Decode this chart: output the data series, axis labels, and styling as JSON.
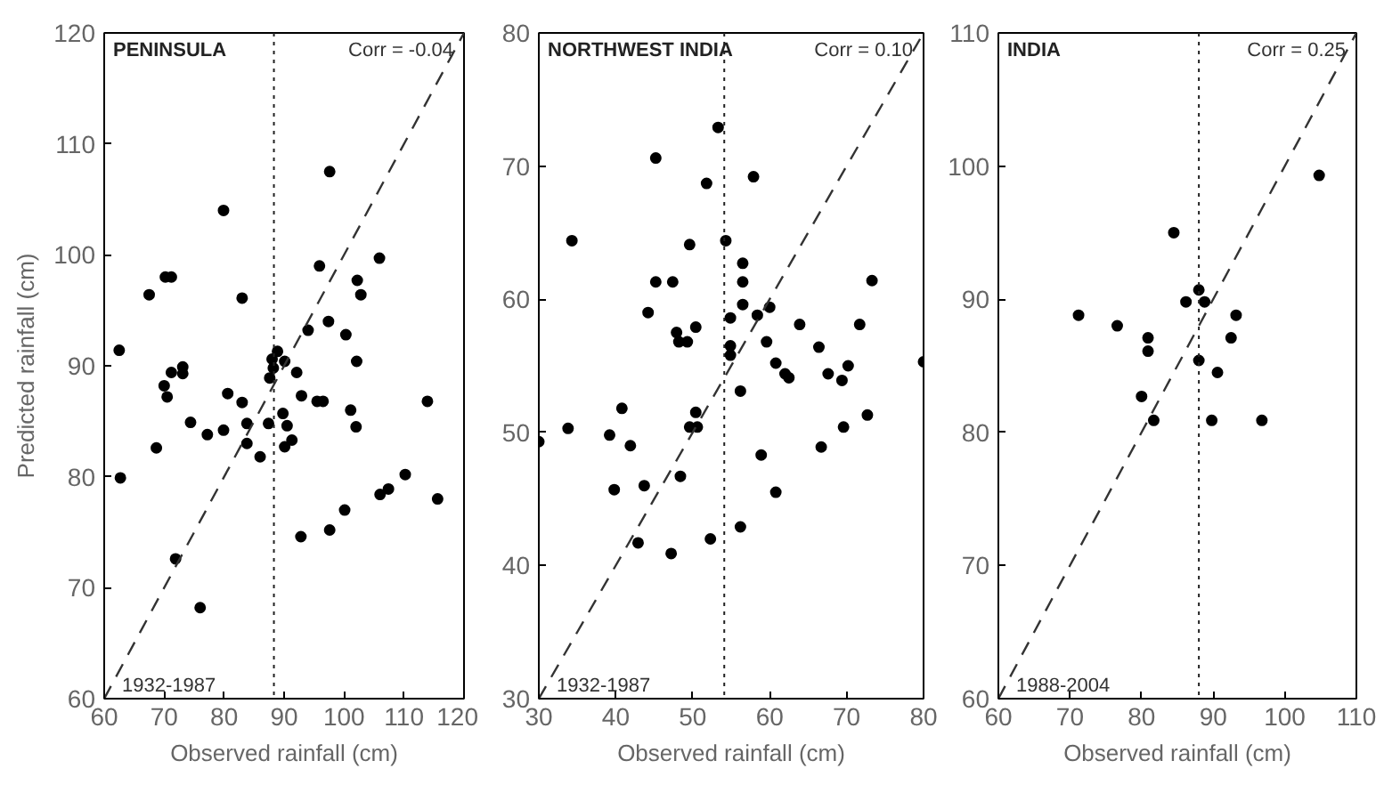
{
  "chart_data": [
    {
      "type": "scatter",
      "title": "PENINSULA",
      "xlabel": "Observed rainfall (cm)",
      "ylabel": "Predicted rainfall (cm)",
      "annotations": [
        "Corr = -0.04",
        "1932-1987"
      ],
      "xlim": [
        60,
        120
      ],
      "ylim": [
        60,
        120
      ],
      "xticks": [
        60,
        70,
        80,
        90,
        100,
        110,
        120
      ],
      "yticks": [
        60,
        70,
        80,
        90,
        100,
        110,
        120
      ],
      "marker": "circle",
      "ref_lines": [
        {
          "axis": "x",
          "value": 88.3,
          "line_style": "dotted",
          "color": "#222222"
        }
      ],
      "series": [
        {
          "color": "#000000",
          "x": [
            62.5,
            62.7,
            67.5,
            68.7,
            70.2,
            71.2,
            70,
            70.5,
            71.2,
            73.1,
            73.1,
            71.9,
            74.4,
            76,
            77.2,
            79.9,
            79.9,
            80.6,
            83,
            83,
            83.8,
            83.8,
            86,
            87.4,
            87.6,
            88.2,
            88.9,
            88,
            90.1,
            89.8,
            90.5,
            90.1,
            91.3,
            92.1,
            92.9,
            94,
            92.8,
            95.9,
            96.5,
            95.5,
            97.6,
            97.4,
            97.6,
            100.3,
            100.1,
            101.1,
            102,
            102.2,
            102.8,
            102.1,
            105.9,
            106,
            107.4,
            110.2,
            113.9,
            115.6
          ],
          "values": [
            91.4,
            79.9,
            96.4,
            82.6,
            98,
            98,
            88.2,
            87.2,
            89.4,
            89.9,
            89.3,
            72.6,
            84.9,
            68.2,
            83.8,
            104,
            84.2,
            87.5,
            96.1,
            86.7,
            84.8,
            83,
            81.8,
            84.8,
            88.9,
            89.8,
            91.3,
            90.6,
            90.4,
            85.7,
            84.6,
            82.7,
            83.3,
            89.4,
            87.3,
            93.2,
            74.6,
            99,
            86.8,
            86.8,
            107.5,
            94,
            75.2,
            92.8,
            77,
            86,
            84.5,
            97.7,
            96.4,
            90.4,
            99.7,
            78.4,
            78.9,
            80.2,
            86.8,
            78
          ]
        },
        {
          "type": "line",
          "color": "#333333",
          "line_style": "dashed",
          "marker": "none",
          "x": [
            60,
            120
          ],
          "values": [
            60,
            120
          ]
        }
      ]
    },
    {
      "type": "scatter",
      "title": "NORTHWEST INDIA",
      "xlabel": "Observed rainfall (cm)",
      "annotations": [
        "Corr = 0.10",
        "1932-1987"
      ],
      "xlim": [
        30,
        80
      ],
      "ylim": [
        30,
        80
      ],
      "xticks": [
        30,
        40,
        50,
        60,
        70,
        80
      ],
      "yticks": [
        30,
        40,
        50,
        60,
        70,
        80
      ],
      "marker": "circle",
      "ref_lines": [
        {
          "axis": "x",
          "value": 54.1,
          "line_style": "dotted",
          "color": "#222222"
        }
      ],
      "series": [
        {
          "color": "#000000",
          "x": [
            30,
            33.8,
            34.3,
            39.2,
            39.8,
            40.8,
            41.9,
            43.7,
            42.9,
            44.2,
            45.2,
            45.2,
            47.4,
            47.2,
            47.9,
            48.2,
            48.4,
            49.3,
            49.6,
            49.6,
            50.6,
            50.4,
            50.4,
            51.8,
            52.3,
            53.3,
            54.3,
            54.9,
            54.9,
            54.9,
            56.2,
            56.5,
            56.5,
            56.5,
            56.2,
            57.9,
            58.4,
            58.9,
            59.6,
            60,
            60.8,
            60.8,
            62,
            62.5,
            63.9,
            66.4,
            66.7,
            67.6,
            69.4,
            70.2,
            69.6,
            71.7,
            72.7,
            73.3,
            80
          ],
          "values": [
            49.3,
            50.3,
            64.4,
            49.8,
            45.7,
            51.8,
            49,
            46,
            41.7,
            59,
            61.3,
            70.6,
            61.3,
            40.9,
            57.5,
            56.8,
            46.7,
            56.8,
            64.1,
            50.4,
            50.4,
            51.5,
            57.9,
            68.7,
            42,
            72.9,
            64.4,
            58.6,
            56.5,
            55.8,
            53.1,
            62.7,
            61.3,
            59.6,
            42.9,
            69.2,
            58.8,
            48.3,
            56.8,
            59.4,
            55.2,
            45.5,
            54.4,
            54.1,
            58.1,
            56.4,
            48.9,
            54.4,
            53.9,
            55,
            50.4,
            58.1,
            51.3,
            61.4,
            55.3
          ]
        },
        {
          "type": "line",
          "color": "#333333",
          "line_style": "dashed",
          "marker": "none",
          "x": [
            30,
            80
          ],
          "values": [
            30,
            80
          ]
        }
      ]
    },
    {
      "type": "scatter",
      "title": "INDIA",
      "xlabel": "Observed rainfall (cm)",
      "annotations": [
        "Corr = 0.25",
        "1988-2004"
      ],
      "xlim": [
        60,
        110
      ],
      "ylim": [
        60,
        110
      ],
      "xticks": [
        60,
        70,
        80,
        90,
        100,
        110
      ],
      "yticks": [
        60,
        70,
        80,
        90,
        100,
        110
      ],
      "marker": "circle",
      "ref_lines": [
        {
          "axis": "x",
          "value": 88,
          "line_style": "dotted",
          "color": "#222222"
        }
      ],
      "series": [
        {
          "color": "#000000",
          "x": [
            71.2,
            76.6,
            80,
            80.9,
            80.9,
            81.7,
            84.5,
            86.2,
            88,
            88.8,
            88,
            89.8,
            90.6,
            92.5,
            93.2,
            96.8,
            104.8
          ],
          "values": [
            88.8,
            88,
            82.7,
            87.1,
            86.1,
            80.9,
            95,
            89.8,
            90.7,
            89.8,
            85.4,
            80.9,
            84.5,
            87.1,
            88.8,
            80.9,
            99.3
          ]
        },
        {
          "type": "line",
          "color": "#333333",
          "line_style": "dashed",
          "marker": "none",
          "x": [
            60,
            110
          ],
          "values": [
            60,
            110
          ]
        }
      ]
    }
  ]
}
